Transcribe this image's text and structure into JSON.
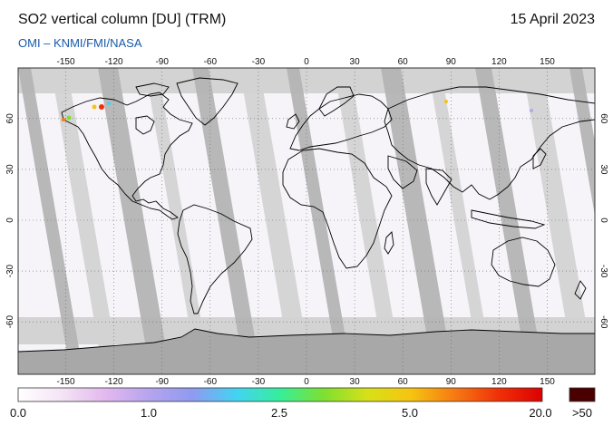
{
  "header": {
    "title": "SO2 vertical column [DU] (TRM)",
    "date": "15 April 2023",
    "credit": "OMI  –  KNMI/FMI/NASA"
  },
  "map": {
    "lon_ticks": [
      "-150",
      "-120",
      "-90",
      "-60",
      "-30",
      "0",
      "30",
      "60",
      "90",
      "120",
      "150"
    ],
    "lat_ticks": [
      "60",
      "30",
      "0",
      "-30",
      "-60"
    ],
    "projection": "equirectangular",
    "colors": {
      "no_data": "#d3d3d3",
      "swath_gap": "#b4b4b4",
      "antarctica": "#a8a8a8",
      "low_value": "#f6f4f9",
      "coast": "#000000"
    }
  },
  "colorbar": {
    "labels": [
      "0.0",
      "1.0",
      "2.5",
      "5.0",
      "20.0"
    ],
    "overflow_label": ">50",
    "gradient": [
      "#ffffff",
      "#f4e4f6",
      "#e3b8ee",
      "#b6a4ee",
      "#8f9af0",
      "#42d4f2",
      "#36ee9a",
      "#7ee030",
      "#d8e018",
      "#f6c410",
      "#f67a12",
      "#f03008",
      "#dc0000"
    ],
    "overflow_color": "#4a0000"
  }
}
